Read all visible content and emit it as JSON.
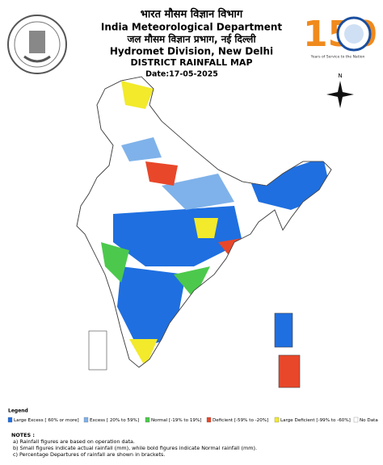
{
  "header": {
    "hindi_title": "भारत मौसम विज्ञान विभाग",
    "title": "India Meteorological Department",
    "hindi_division": "जल मौसम विज्ञान प्रभाग, नई दिल्ली",
    "division": "Hydromet Division, New Delhi",
    "map_title": "DISTRICT RAINFALL MAP",
    "date": "Date:17-05-2025"
  },
  "logo": {
    "number": "150",
    "tagline": "Years of Service to the Nation"
  },
  "compass": "N",
  "legend": {
    "title": "Legend",
    "items": [
      {
        "label": "Large Excess [ 60% or more]",
        "color": "#1f6fe0"
      },
      {
        "label": "Excess [ 20% to 59%]",
        "color": "#7fb2ea"
      },
      {
        "label": "Normal [-19% to 19%]",
        "color": "#4cc94c"
      },
      {
        "label": "Deficient [-59% to -20%]",
        "color": "#e8472a"
      },
      {
        "label": "Large Deficient [-99% to -60%]",
        "color": "#f2ea2a"
      },
      {
        "label": "No Data",
        "color": "#ffffff"
      }
    ]
  },
  "notes": {
    "title": "NOTES :",
    "lines": [
      "a) Rainfall figures are based on operation data.",
      "b) Small figures indicate actual rainfall (mm), while bold figures indicate Normal rainfall (mm).",
      "c) Percentage Departures of rainfall are shown in brackets."
    ]
  }
}
